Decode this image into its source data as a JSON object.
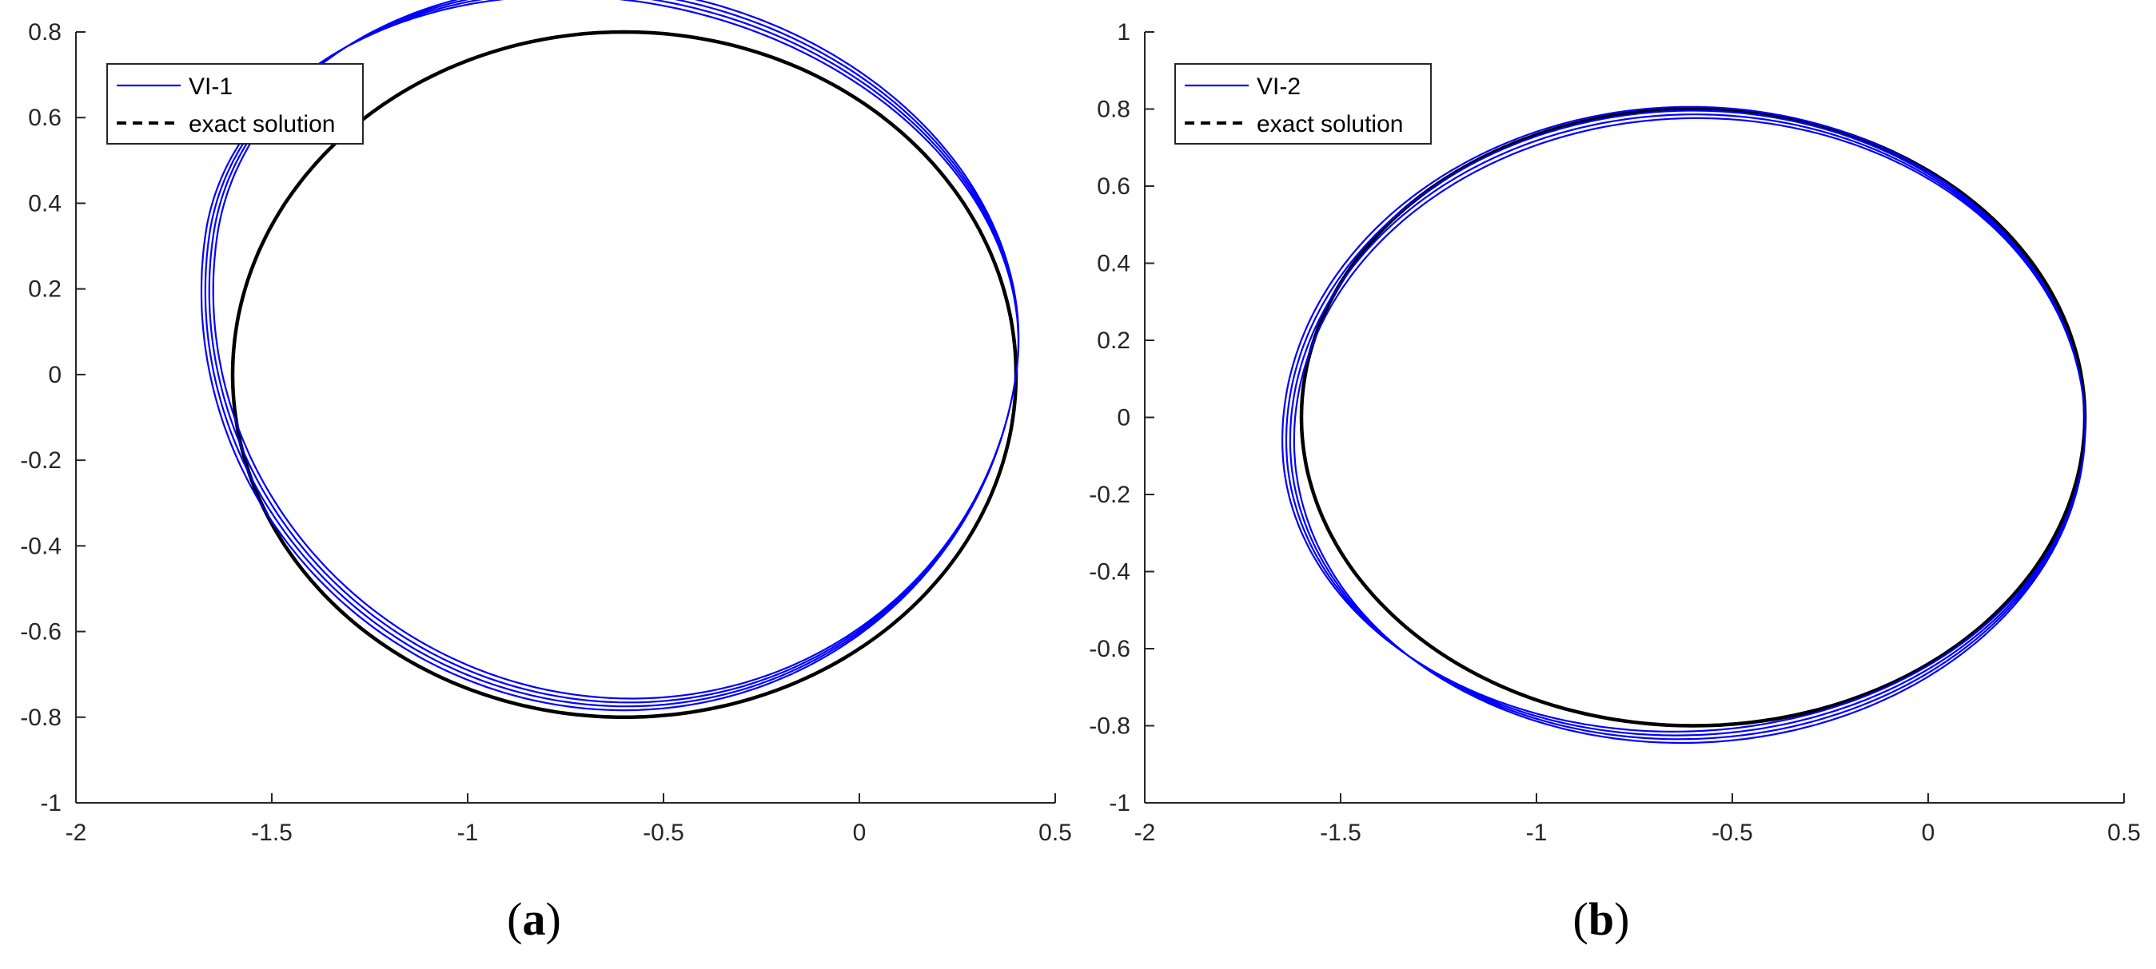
{
  "chart_data": [
    {
      "type": "line",
      "panel_label": "(a)",
      "panel_letter": "a",
      "xlim": [
        -2,
        0.5
      ],
      "ylim": [
        -1,
        0.8
      ],
      "xticks": [
        "-2",
        "-1.5",
        "-1",
        "-0.5",
        "0",
        "0.5"
      ],
      "yticks": [
        "-1",
        "-0.8",
        "-0.6",
        "-0.4",
        "-0.2",
        "0",
        "0.2",
        "0.4",
        "0.6",
        "0.8"
      ],
      "grid": false,
      "legend_placement": "top-left",
      "series": [
        {
          "name": "VI-1",
          "style": "solid",
          "color": "#0000ff",
          "description_values": {
            "orbit_count": 4,
            "perihelion_x": 0.4,
            "turns": [
              {
                "aphelion_x": -1.665,
                "top_y": 0.74,
                "bottom_y": -0.915
              },
              {
                "aphelion_x": -1.675,
                "top_y": 0.73,
                "bottom_y": -0.925
              },
              {
                "aphelion_x": -1.685,
                "top_y": 0.72,
                "bottom_y": -0.935
              },
              {
                "aphelion_x": -1.695,
                "top_y": 0.71,
                "bottom_y": -0.945
              }
            ],
            "rotation_deg": -9,
            "end_point": [
              -1.33,
              -0.73
            ]
          }
        },
        {
          "name": "exact solution",
          "style": "dashed",
          "color": "#000000",
          "description_values": {
            "center": [
              -0.6,
              0
            ],
            "semi_axis_x": 1.0,
            "semi_axis_y": 0.8
          }
        }
      ]
    },
    {
      "type": "line",
      "panel_label": "(b)",
      "panel_letter": "b",
      "xlim": [
        -2,
        0.5
      ],
      "ylim": [
        -1,
        1
      ],
      "xticks": [
        "-2",
        "-1.5",
        "-1",
        "-0.5",
        "0",
        "0.5"
      ],
      "yticks": [
        "-1",
        "-0.8",
        "-0.6",
        "-0.4",
        "-0.2",
        "0",
        "0.2",
        "0.4",
        "0.6",
        "0.8",
        "1"
      ],
      "grid": false,
      "legend_placement": "top-left",
      "series": [
        {
          "name": "VI-2",
          "style": "solid",
          "color": "#0000ff",
          "description_values": {
            "orbit_count": 4,
            "perihelion_x": 0.4,
            "turns": [
              {
                "aphelion_x": -1.62,
                "top_y": 0.82,
                "bottom_y": -0.8
              },
              {
                "aphelion_x": -1.63,
                "top_y": 0.83,
                "bottom_y": -0.79
              },
              {
                "aphelion_x": -1.64,
                "top_y": 0.84,
                "bottom_y": -0.78
              },
              {
                "aphelion_x": -1.65,
                "top_y": 0.85,
                "bottom_y": -0.77
              }
            ],
            "rotation_deg": 2.5,
            "end_point": [
              -0.53,
              -0.76
            ]
          }
        },
        {
          "name": "exact solution",
          "style": "dashed",
          "color": "#000000",
          "description_values": {
            "center": [
              -0.6,
              0
            ],
            "semi_axis_x": 1.0,
            "semi_axis_y": 0.8
          }
        }
      ]
    }
  ]
}
